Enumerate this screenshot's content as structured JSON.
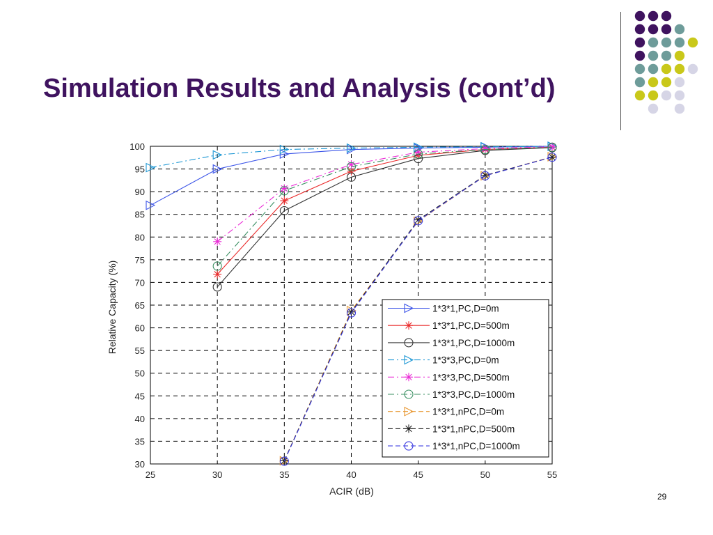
{
  "slide": {
    "title": "Simulation Results and Analysis (cont’d)",
    "page_number": "29",
    "dot_colors": [
      "#3f135f",
      "#6e9c9a",
      "#c9c81a",
      "#d6d5e6"
    ]
  },
  "chart_data": {
    "type": "line",
    "title": "",
    "xlabel": "ACIR (dB)",
    "ylabel": "Relative Capacity (%)",
    "xlim": [
      25,
      55
    ],
    "ylim": [
      30,
      100
    ],
    "xticks": [
      25,
      30,
      35,
      40,
      45,
      50,
      55
    ],
    "yticks": [
      30,
      35,
      40,
      45,
      50,
      55,
      60,
      65,
      70,
      75,
      80,
      85,
      90,
      95,
      100
    ],
    "grid": true,
    "legend_position": "bottom-right",
    "series": [
      {
        "name": "1*3*1,PC,D=0m",
        "color": "#3b54e8",
        "marker": "triangle-right",
        "dash": "solid",
        "x": [
          25,
          30,
          35,
          40,
          45,
          50,
          55
        ],
        "y": [
          87,
          95,
          98.3,
          99.3,
          99.6,
          99.8,
          100
        ]
      },
      {
        "name": "1*3*1,PC,D=500m",
        "color": "#ea2b2b",
        "marker": "star",
        "dash": "solid",
        "x": [
          30,
          35,
          40,
          45,
          50,
          55
        ],
        "y": [
          71.8,
          88,
          94.5,
          98,
          99.3,
          99.8
        ]
      },
      {
        "name": "1*3*1,PC,D=1000m",
        "color": "#333333",
        "marker": "circle",
        "dash": "solid",
        "x": [
          30,
          35,
          40,
          45,
          50,
          55
        ],
        "y": [
          69,
          85.8,
          93.2,
          97.3,
          99.1,
          99.7
        ]
      },
      {
        "name": "1*3*3,PC,D=0m",
        "color": "#1d97d4",
        "marker": "triangle-right",
        "dash": "dashdot",
        "x": [
          25,
          30,
          35,
          40,
          45,
          50,
          55
        ],
        "y": [
          95.3,
          98.1,
          99.3,
          99.6,
          99.8,
          99.9,
          100
        ]
      },
      {
        "name": "1*3*3,PC,D=500m",
        "color": "#ea2bd6",
        "marker": "star",
        "dash": "dashdot",
        "x": [
          30,
          35,
          40,
          45,
          50,
          55
        ],
        "y": [
          79,
          90.7,
          96,
          98.7,
          99.5,
          99.9
        ]
      },
      {
        "name": "1*3*3,PC,D=1000m",
        "color": "#3a8f62",
        "marker": "circle",
        "dash": "dashdot",
        "x": [
          30,
          35,
          40,
          45,
          50,
          55
        ],
        "y": [
          73.6,
          90.2,
          95.5,
          98.3,
          99.3,
          99.8
        ]
      },
      {
        "name": "1*3*1,nPC,D=0m",
        "color": "#e8962f",
        "marker": "triangle-right",
        "dash": "dashed",
        "x": [
          35,
          40,
          45,
          50,
          55
        ],
        "y": [
          30.7,
          63.8,
          83.5,
          93.5,
          97.7
        ]
      },
      {
        "name": "1*3*1,nPC,D=500m",
        "color": "#222222",
        "marker": "star",
        "dash": "dashed",
        "x": [
          35,
          40,
          45,
          50,
          55
        ],
        "y": [
          30.7,
          63.5,
          83.8,
          93.6,
          97.6
        ]
      },
      {
        "name": "1*3*1,nPC,D=1000m",
        "color": "#3b3be0",
        "marker": "circle",
        "dash": "dashed",
        "x": [
          35,
          40,
          45,
          50,
          55
        ],
        "y": [
          30.6,
          63.3,
          83.6,
          93.5,
          97.6
        ]
      }
    ]
  }
}
